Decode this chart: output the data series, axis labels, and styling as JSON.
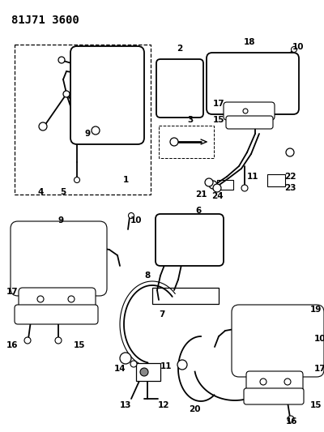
{
  "title": "81J71 3600",
  "bg_color": "#ffffff",
  "line_color": "#000000",
  "title_fontsize": 10,
  "label_fontsize": 7.5,
  "fig_width": 4.0,
  "fig_height": 5.33,
  "dpi": 100
}
